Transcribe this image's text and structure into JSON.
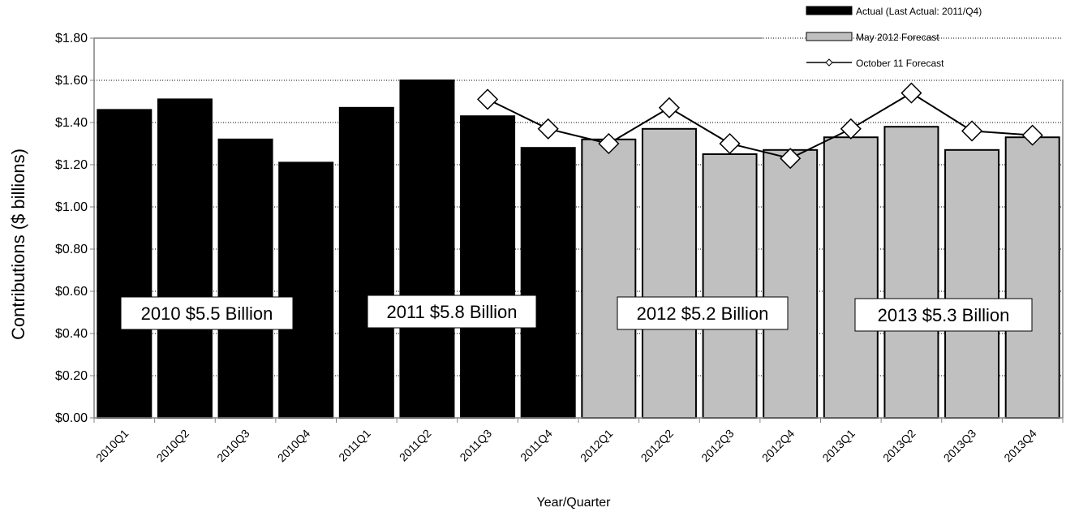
{
  "chart_data": {
    "type": "bar",
    "ylabel": "Contributions ($ billions)",
    "xlabel": "Year/Quarter",
    "ylim": [
      0,
      1.8
    ],
    "ytick_labels": [
      "$0.00",
      "$0.20",
      "$0.40",
      "$0.60",
      "$0.80",
      "$1.00",
      "$1.20",
      "$1.40",
      "$1.60",
      "$1.80"
    ],
    "ytick_values": [
      0,
      0.2,
      0.4,
      0.6,
      0.8,
      1.0,
      1.2,
      1.4,
      1.6,
      1.8
    ],
    "grid": "horizontal dotted",
    "legend_position": "top-right",
    "categories": [
      "2010Q1",
      "2010Q2",
      "2010Q3",
      "2010Q4",
      "2011Q1",
      "2011Q2",
      "2011Q3",
      "2011Q4",
      "2012Q1",
      "2012Q2",
      "2012Q3",
      "2012Q4",
      "2013Q1",
      "2013Q2",
      "2013Q3",
      "2013Q4"
    ],
    "series": [
      {
        "name": "Actual (Last Actual: 2011/Q4)",
        "kind": "bar",
        "color": "#000000",
        "values": [
          1.46,
          1.51,
          1.32,
          1.21,
          1.47,
          1.6,
          1.43,
          1.28,
          null,
          null,
          null,
          null,
          null,
          null,
          null,
          null
        ]
      },
      {
        "name": "May 2012 Forecast",
        "kind": "bar",
        "color": "#c0c0c0",
        "values": [
          null,
          null,
          null,
          null,
          null,
          null,
          null,
          null,
          1.32,
          1.37,
          1.25,
          1.27,
          1.33,
          1.38,
          1.27,
          1.33
        ]
      },
      {
        "name": "October 11 Forecast",
        "kind": "line",
        "color": "#000000",
        "marker": "diamond",
        "values": [
          null,
          null,
          null,
          null,
          null,
          null,
          1.51,
          1.37,
          1.3,
          1.47,
          1.3,
          1.23,
          1.37,
          1.54,
          1.36,
          1.34
        ]
      }
    ],
    "annotations": [
      "2010 $5.5 Billion",
      "2011 $5.8 Billion",
      "2012 $5.2 Billion",
      "2013 $5.3 Billion"
    ]
  }
}
